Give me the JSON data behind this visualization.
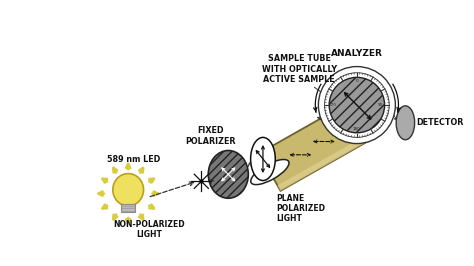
{
  "bg_color": "#ffffff",
  "labels": {
    "led": "589 nm LED",
    "non_polarized": "NON-POLARIZED\nLIGHT",
    "fixed_polarizer": "FIXED\nPOLARIZER",
    "plane_polarized": "PLANE\nPOLARIZED\nLIGHT",
    "sample_tube": "SAMPLE TUBE\nWITH OPTICALLY\nACTIVE SAMPLE",
    "analyzer": "ANALYZER",
    "detector": "DETECTOR"
  },
  "colors": {
    "background": "#ffffff",
    "bulb_yellow": "#f0e060",
    "bulb_ray": "#d8cc40",
    "tube_fill": "#c8b96e",
    "tube_highlight": "#e0d090",
    "tube_shadow": "#a09050",
    "tube_edge": "#706030",
    "polarizer_fill": "#888888",
    "polarizer_dark": "#555555",
    "analyzer_fill": "#aaaaaa",
    "dial_bg": "#f0f0f0",
    "text": "#111111",
    "arrow_dark": "#222222",
    "dashed": "#444444"
  },
  "figsize": [
    4.74,
    2.66
  ],
  "dpi": 100
}
